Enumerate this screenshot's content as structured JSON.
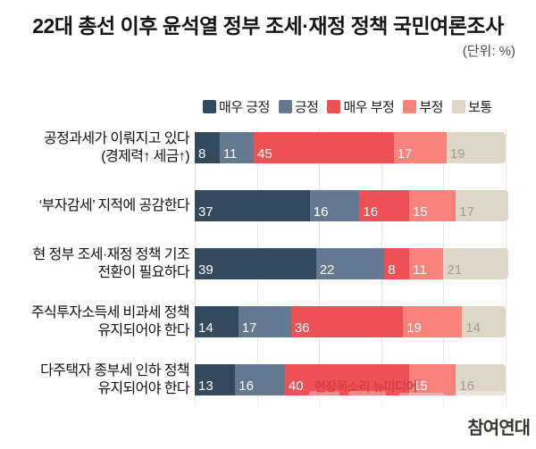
{
  "title": "22대 총선 이후 윤석열 정부 조세·재정 정책 국민여론조사",
  "unit_label": "(단위: %)",
  "watermarks": {
    "overlay_text": "현장목소리 뉴미디어",
    "logo_text": "참여연대"
  },
  "colors": {
    "very_positive": "#33495e",
    "positive": "#64788f",
    "very_negative": "#ed5055",
    "negative": "#f9827d",
    "neutral": "#ded6c6",
    "gridline": "#e9e9e9",
    "overlay_watermark": "#d63d47"
  },
  "chart_data": {
    "type": "bar",
    "orientation": "horizontal",
    "stacked": true,
    "unit": "%",
    "title": "22대 총선 이후 윤석열 정부 조세·재정 정책 국민여론조사",
    "xlim": [
      0,
      100
    ],
    "gridlines": [
      0,
      20,
      40,
      60,
      80,
      100
    ],
    "legend_position": "top",
    "categories": [
      "공정과세가 이뤄지고 있다\n(경제력↑ 세금↑)",
      "‘부자감세’ 지적에 공감한다",
      "현 정부 조세·재정 정책 기조\n전환이 필요하다",
      "주식투자소득세 비과세 정책\n유지되어야 한다",
      "다주택자 종부세 인하 정책\n유지되어야 한다"
    ],
    "series": [
      {
        "name": "매우 긍정",
        "color": "#33495e",
        "value_text_color": "#ffffff",
        "values": [
          8,
          37,
          39,
          14,
          13
        ]
      },
      {
        "name": "긍정",
        "color": "#64788f",
        "value_text_color": "#ffffff",
        "values": [
          11,
          16,
          22,
          17,
          16
        ]
      },
      {
        "name": "매우 부정",
        "color": "#ed5055",
        "value_text_color": "#ffffff",
        "values": [
          45,
          16,
          8,
          36,
          40
        ]
      },
      {
        "name": "부정",
        "color": "#f9827d",
        "value_text_color": "#ffffff",
        "values": [
          17,
          15,
          11,
          19,
          15
        ]
      },
      {
        "name": "보통",
        "color": "#ded6c6",
        "value_text_color": "#a29d92",
        "values": [
          19,
          17,
          21,
          14,
          16
        ]
      }
    ]
  }
}
